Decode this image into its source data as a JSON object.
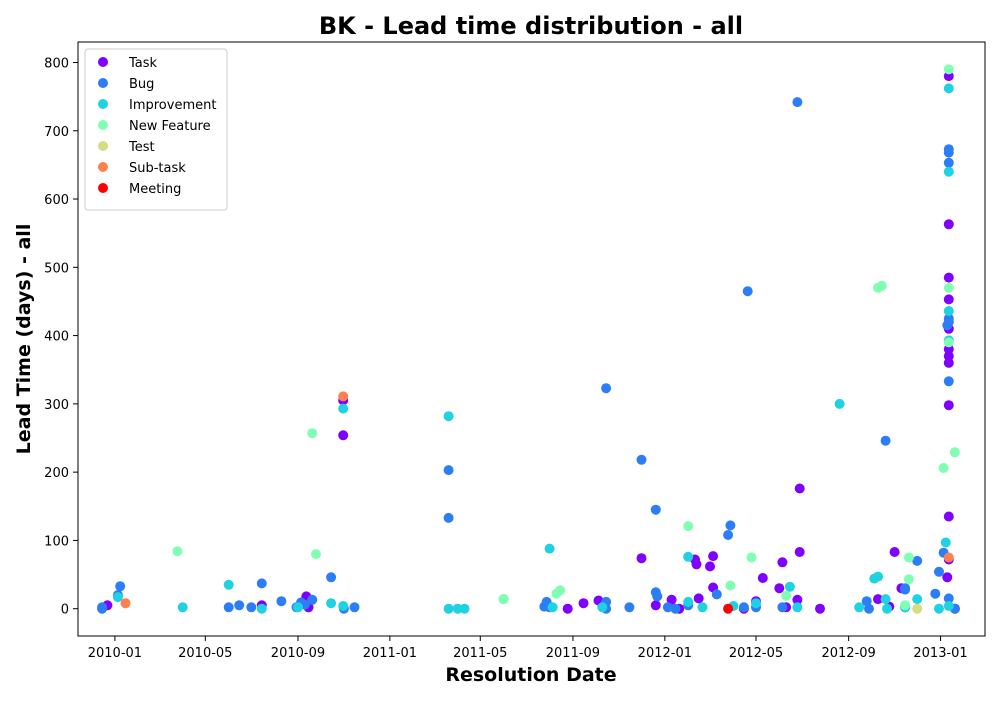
{
  "chart_data": {
    "type": "scatter",
    "title": "BK - Lead time distribution - all",
    "xlabel": "Resolution Date",
    "ylabel": "Lead Time (days) - all",
    "x_ticks": [
      "2010-01",
      "2010-05",
      "2010-09",
      "2011-01",
      "2011-05",
      "2011-09",
      "2012-01",
      "2012-05",
      "2012-09",
      "2013-01"
    ],
    "xlim": [
      "2009-11-13",
      "2013-03-01"
    ],
    "ylim": [
      -40,
      830
    ],
    "y_ticks": [
      0,
      100,
      200,
      300,
      400,
      500,
      600,
      700,
      800
    ],
    "grid": false,
    "legend_position": "upper-left",
    "series": [
      {
        "name": "Task",
        "color": "#8000ff",
        "points": [
          [
            "2009-12-22",
            5
          ],
          [
            "2010-07-15",
            5
          ],
          [
            "2010-09-12",
            18
          ],
          [
            "2010-09-15",
            2
          ],
          [
            "2010-10-31",
            305
          ],
          [
            "2010-10-31",
            254
          ],
          [
            "2011-08-25",
            0
          ],
          [
            "2011-09-15",
            8
          ],
          [
            "2011-10-05",
            12
          ],
          [
            "2011-12-01",
            74
          ],
          [
            "2011-12-20",
            5
          ],
          [
            "2012-01-10",
            13
          ],
          [
            "2012-01-20",
            0
          ],
          [
            "2012-02-10",
            72
          ],
          [
            "2012-02-12",
            65
          ],
          [
            "2012-02-15",
            15
          ],
          [
            "2012-03-01",
            62
          ],
          [
            "2012-03-05",
            77
          ],
          [
            "2012-03-05",
            31
          ],
          [
            "2012-04-15",
            0
          ],
          [
            "2012-05-01",
            11
          ],
          [
            "2012-05-10",
            45
          ],
          [
            "2012-06-01",
            30
          ],
          [
            "2012-06-05",
            68
          ],
          [
            "2012-06-10",
            2
          ],
          [
            "2012-06-25",
            13
          ],
          [
            "2012-06-28",
            83
          ],
          [
            "2012-06-28",
            176
          ],
          [
            "2012-07-25",
            0
          ],
          [
            "2012-10-10",
            14
          ],
          [
            "2012-10-25",
            3
          ],
          [
            "2012-11-01",
            83
          ],
          [
            "2012-11-10",
            30
          ],
          [
            "2013-01-10",
            46
          ],
          [
            "2013-01-12",
            298
          ],
          [
            "2013-01-12",
            135
          ],
          [
            "2013-01-12",
            360
          ],
          [
            "2013-01-12",
            370
          ],
          [
            "2013-01-12",
            380
          ],
          [
            "2013-01-12",
            410
          ],
          [
            "2013-01-12",
            453
          ],
          [
            "2013-01-12",
            485
          ],
          [
            "2013-01-12",
            563
          ],
          [
            "2013-01-12",
            780
          ],
          [
            "2013-01-12",
            72
          ],
          [
            "2013-01-20",
            0
          ]
        ]
      },
      {
        "name": "Bug",
        "color": "#2c7ef7",
        "points": [
          [
            "2009-12-15",
            2
          ],
          [
            "2009-12-15",
            0
          ],
          [
            "2010-01-05",
            20
          ],
          [
            "2010-01-08",
            33
          ],
          [
            "2010-06-01",
            2
          ],
          [
            "2010-06-15",
            5
          ],
          [
            "2010-07-01",
            2
          ],
          [
            "2010-07-15",
            37
          ],
          [
            "2010-08-10",
            11
          ],
          [
            "2010-08-30",
            2
          ],
          [
            "2010-09-05",
            9
          ],
          [
            "2010-09-10",
            6
          ],
          [
            "2010-09-20",
            13
          ],
          [
            "2010-10-15",
            46
          ],
          [
            "2010-11-01",
            0
          ],
          [
            "2010-11-15",
            2
          ],
          [
            "2011-03-20",
            203
          ],
          [
            "2011-03-20",
            133
          ],
          [
            "2011-07-25",
            3
          ],
          [
            "2011-07-28",
            10
          ],
          [
            "2011-08-01",
            2
          ],
          [
            "2011-10-15",
            10
          ],
          [
            "2011-10-15",
            0
          ],
          [
            "2011-10-15",
            323
          ],
          [
            "2011-11-15",
            2
          ],
          [
            "2011-12-01",
            218
          ],
          [
            "2011-12-20",
            145
          ],
          [
            "2011-12-20",
            24
          ],
          [
            "2011-12-22",
            18
          ],
          [
            "2012-01-05",
            2
          ],
          [
            "2012-01-15",
            0
          ],
          [
            "2012-02-01",
            5
          ],
          [
            "2012-03-10",
            21
          ],
          [
            "2012-03-25",
            108
          ],
          [
            "2012-03-28",
            122
          ],
          [
            "2012-04-15",
            2
          ],
          [
            "2012-04-20",
            465
          ],
          [
            "2012-05-01",
            2
          ],
          [
            "2012-06-05",
            2
          ],
          [
            "2012-06-25",
            742
          ],
          [
            "2012-09-25",
            11
          ],
          [
            "2012-09-28",
            0
          ],
          [
            "2012-10-20",
            246
          ],
          [
            "2012-11-15",
            2
          ],
          [
            "2012-11-15",
            28
          ],
          [
            "2012-11-15",
            30
          ],
          [
            "2012-12-01",
            70
          ],
          [
            "2012-12-25",
            22
          ],
          [
            "2012-12-30",
            54
          ],
          [
            "2013-01-05",
            82
          ],
          [
            "2013-01-10",
            415
          ],
          [
            "2013-01-12",
            333
          ],
          [
            "2013-01-12",
            420
          ],
          [
            "2013-01-12",
            425
          ],
          [
            "2013-01-12",
            653
          ],
          [
            "2013-01-12",
            668
          ],
          [
            "2013-01-12",
            673
          ],
          [
            "2013-01-12",
            15
          ],
          [
            "2013-01-20",
            0
          ]
        ]
      },
      {
        "name": "Improvement",
        "color": "#1ed2e2",
        "points": [
          [
            "2010-01-05",
            17
          ],
          [
            "2010-04-01",
            2
          ],
          [
            "2010-06-01",
            35
          ],
          [
            "2010-07-15",
            0
          ],
          [
            "2010-09-01",
            2
          ],
          [
            "2010-10-15",
            8
          ],
          [
            "2010-10-31",
            293
          ],
          [
            "2010-10-31",
            4
          ],
          [
            "2011-03-20",
            282
          ],
          [
            "2011-03-20",
            0
          ],
          [
            "2011-04-01",
            0
          ],
          [
            "2011-04-10",
            0
          ],
          [
            "2011-06-01",
            14
          ],
          [
            "2011-08-01",
            88
          ],
          [
            "2011-08-05",
            2
          ],
          [
            "2011-10-10",
            2
          ],
          [
            "2012-02-01",
            76
          ],
          [
            "2012-02-01",
            10
          ],
          [
            "2012-02-20",
            2
          ],
          [
            "2012-04-01",
            4
          ],
          [
            "2012-05-01",
            8
          ],
          [
            "2012-06-15",
            32
          ],
          [
            "2012-06-25",
            2
          ],
          [
            "2012-08-20",
            300
          ],
          [
            "2012-09-15",
            2
          ],
          [
            "2012-10-05",
            44
          ],
          [
            "2012-10-10",
            47
          ],
          [
            "2012-10-20",
            14
          ],
          [
            "2012-10-22",
            0
          ],
          [
            "2012-11-15",
            2
          ],
          [
            "2012-12-01",
            14
          ],
          [
            "2012-12-30",
            0
          ],
          [
            "2013-01-08",
            97
          ],
          [
            "2013-01-12",
            393
          ],
          [
            "2013-01-12",
            436
          ],
          [
            "2013-01-12",
            640
          ],
          [
            "2013-01-12",
            762
          ],
          [
            "2013-01-12",
            4
          ]
        ]
      },
      {
        "name": "New Feature",
        "color": "#80ffb4",
        "points": [
          [
            "2010-03-25",
            84
          ],
          [
            "2010-09-20",
            257
          ],
          [
            "2010-09-25",
            80
          ],
          [
            "2011-06-01",
            14
          ],
          [
            "2011-08-10",
            22
          ],
          [
            "2011-08-15",
            27
          ],
          [
            "2012-02-01",
            121
          ],
          [
            "2012-03-28",
            34
          ],
          [
            "2012-04-25",
            75
          ],
          [
            "2012-06-10",
            19
          ],
          [
            "2012-10-10",
            470
          ],
          [
            "2012-10-15",
            473
          ],
          [
            "2012-11-15",
            5
          ],
          [
            "2012-11-20",
            43
          ],
          [
            "2012-11-20",
            75
          ],
          [
            "2013-01-05",
            206
          ],
          [
            "2013-01-12",
            390
          ],
          [
            "2013-01-12",
            470
          ],
          [
            "2013-01-12",
            790
          ],
          [
            "2013-01-20",
            229
          ]
        ]
      },
      {
        "name": "Test",
        "color": "#d4dd80",
        "points": [
          [
            "2012-12-01",
            0
          ]
        ]
      },
      {
        "name": "Sub-task",
        "color": "#ff7f4f",
        "points": [
          [
            "2010-01-15",
            8
          ],
          [
            "2010-10-31",
            311
          ],
          [
            "2013-01-12",
            75
          ]
        ]
      },
      {
        "name": "Meeting",
        "color": "#ff0000",
        "points": [
          [
            "2012-03-25",
            0
          ]
        ]
      }
    ]
  }
}
